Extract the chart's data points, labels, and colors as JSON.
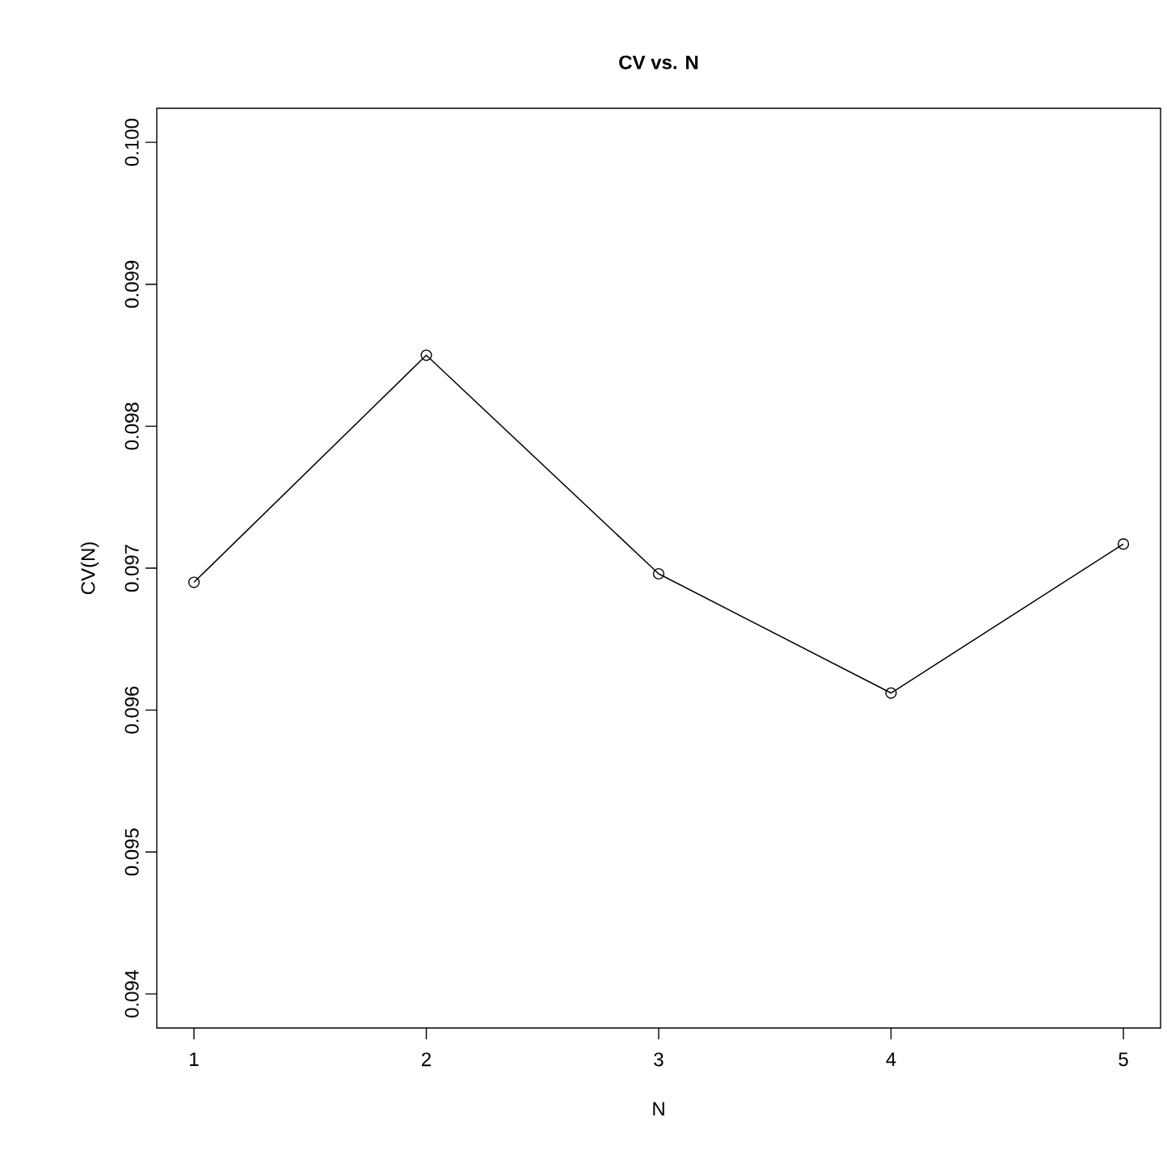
{
  "chart_data": {
    "type": "line",
    "title": "CV vs. N",
    "xlabel": "N",
    "ylabel": "CV(N)",
    "x": [
      1,
      2,
      3,
      4,
      5
    ],
    "series": [
      {
        "color": "#000000",
        "values": [
          0.0969,
          0.0985,
          0.09696,
          0.09612,
          0.09717
        ]
      }
    ],
    "xlim": [
      0.84,
      5.16
    ],
    "ylim": [
      0.09376,
      0.10024
    ],
    "xticks": [
      1,
      2,
      3,
      4,
      5
    ],
    "yticks": [
      0.094,
      0.095,
      0.096,
      0.097,
      0.098,
      0.099,
      {
        "value": 0.1,
        "label": "0.100"
      }
    ],
    "marker": "circle",
    "line_style": "solid"
  }
}
